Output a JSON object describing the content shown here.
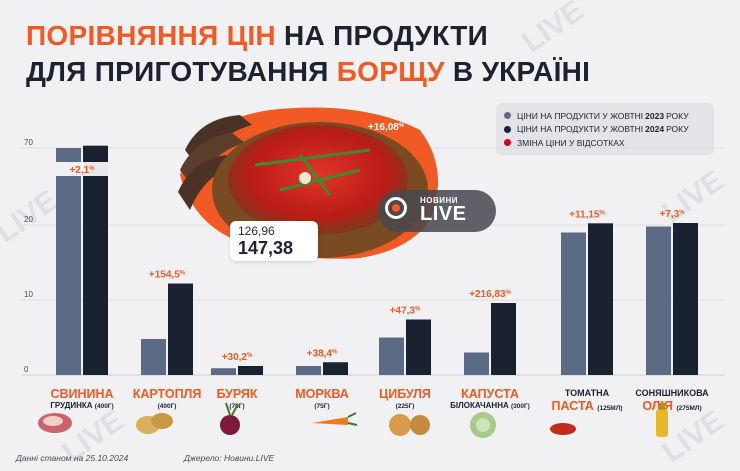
{
  "title": {
    "line1_orange": "ПОРІВНЯННЯ ЦІН",
    "line1_dark": " НА ПРОДУКТИ",
    "line2_dark_a": "ДЛЯ ПРИГОТУВАННЯ ",
    "line2_orange": "БОРЩУ",
    "line2_dark_b": " В УКРАЇНІ"
  },
  "legend": {
    "items": [
      {
        "pre": "ЦІНИ НА ПРОДУКТИ У ЖОВТНІ ",
        "year": "2023",
        "post": " РОКУ",
        "color": "#5b6a85"
      },
      {
        "pre": "ЦІНИ НА ПРОДУКТИ У ЖОВТНІ ",
        "year": "2024",
        "post": " РОКУ",
        "color": "#1a2131"
      },
      {
        "pre": "ЗМІНА ЦІНИ У ВІДСОТКАХ",
        "year": "",
        "post": "",
        "color": "#d0021b"
      }
    ]
  },
  "borscht": {
    "old": "126,96",
    "new": "147,38",
    "change_num": "+16,08",
    "change_pct": "%"
  },
  "logo": {
    "small": "НОВИНИ",
    "big": "LIVE"
  },
  "chart_data": {
    "type": "bar",
    "ylim": [
      0,
      80
    ],
    "yticks": [
      0,
      10,
      20,
      70
    ],
    "ytick_labels": [
      "0",
      "10",
      "20",
      "70"
    ],
    "categories": [
      "Свинина грудинка",
      "Картопля",
      "Буряк",
      "Морква",
      "Цибуля",
      "Капуста білокачанна",
      "Томатна паста",
      "Соняшникова олія"
    ],
    "series": [
      {
        "name": "ЦІНИ НА ПРОДУКТИ У ЖОВТНІ 2023 РОКУ",
        "color": "#5b6a85",
        "values": [
          70.0,
          4.8,
          0.9,
          1.2,
          5.0,
          3.0,
          19.0,
          19.8
        ]
      },
      {
        "name": "ЦІНИ НА ПРОДУКТИ У ЖОВТНІ 2024 РОКУ",
        "color": "#1a2131",
        "values": [
          71.5,
          12.2,
          1.2,
          1.7,
          7.4,
          9.6,
          21.1,
          21.3
        ]
      }
    ],
    "changes": [
      {
        "num": "+2,1",
        "pct": "%"
      },
      {
        "num": "+154,5",
        "pct": "%"
      },
      {
        "num": "+30,2",
        "pct": "%"
      },
      {
        "num": "+38,4",
        "pct": "%"
      },
      {
        "num": "+47,3",
        "pct": "%"
      },
      {
        "num": "+216,83",
        "pct": "%"
      },
      {
        "num": "+11,15",
        "pct": "%"
      },
      {
        "num": "+7,3",
        "pct": "%"
      }
    ]
  },
  "labels": [
    {
      "main": "СВИНИНА",
      "sub": "ГРУДИНКА",
      "amt": "(400Г)",
      "style": "a"
    },
    {
      "main": "КАРТОПЛЯ",
      "sub": "",
      "amt": "(400Г)",
      "style": "b"
    },
    {
      "main": "БУРЯК",
      "sub": "",
      "amt": "(75Г)",
      "style": "b"
    },
    {
      "main": "МОРКВА",
      "sub": "",
      "amt": "(75Г)",
      "style": "b"
    },
    {
      "main": "ЦИБУЛЯ",
      "sub": "",
      "amt": "(225Г)",
      "style": "b"
    },
    {
      "main": "КАПУСТА",
      "sub": "БІЛОКАЧАННА",
      "amt": "(300Г)",
      "style": "a"
    },
    {
      "dark": "ТОМАТНА",
      "main": "ПАСТА",
      "amt": "(125МЛ)",
      "style": "c"
    },
    {
      "dark": "СОНЯШНИКОВА",
      "main": "ОЛІЯ",
      "amt": "(275МЛ)",
      "style": "c"
    }
  ],
  "footer": {
    "left": "Данні станом на 25.10.2024",
    "right": "Джерело: Новини.LIVE"
  },
  "watermark": "LIVE"
}
